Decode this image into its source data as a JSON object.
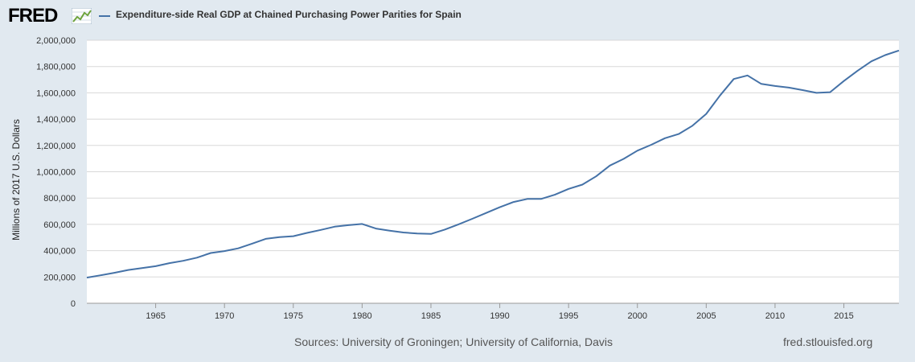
{
  "header": {
    "logo_text": "FRED",
    "legend_label": "Expenditure-side Real GDP at Chained Purchasing Power Parities for Spain"
  },
  "footer": {
    "source": "Sources: University of Groningen; University of California, Davis",
    "site": "fred.stlouisfed.org"
  },
  "colors": {
    "line": "#4572a7",
    "background": "#e1e9f0",
    "plot": "#ffffff",
    "grid": "#d8d8d8"
  },
  "chart_data": {
    "type": "line",
    "title": "Expenditure-side Real GDP at Chained Purchasing Power Parities for Spain",
    "xlabel": "",
    "ylabel": "Millions of 2017 U.S. Dollars",
    "xlim": [
      1960,
      2019
    ],
    "ylim": [
      0,
      2000000
    ],
    "x_ticks": [
      1965,
      1970,
      1975,
      1980,
      1985,
      1990,
      1995,
      2000,
      2005,
      2010,
      2015
    ],
    "y_ticks": [
      0,
      200000,
      400000,
      600000,
      800000,
      1000000,
      1200000,
      1400000,
      1600000,
      1800000,
      2000000
    ],
    "y_tick_labels": [
      "0",
      "200,000",
      "400,000",
      "600,000",
      "800,000",
      "1,000,000",
      "1,200,000",
      "1,400,000",
      "1,600,000",
      "1,800,000",
      "2,000,000"
    ],
    "grid": true,
    "legend": "top-left",
    "series": [
      {
        "name": "Expenditure-side Real GDP at Chained Purchasing Power Parities for Spain",
        "x": [
          1960,
          1961,
          1962,
          1963,
          1964,
          1965,
          1966,
          1967,
          1968,
          1969,
          1970,
          1971,
          1972,
          1973,
          1974,
          1975,
          1976,
          1977,
          1978,
          1979,
          1980,
          1981,
          1982,
          1983,
          1984,
          1985,
          1986,
          1987,
          1988,
          1989,
          1990,
          1991,
          1992,
          1993,
          1994,
          1995,
          1996,
          1997,
          1998,
          1999,
          2000,
          2001,
          2002,
          2003,
          2004,
          2005,
          2006,
          2007,
          2008,
          2009,
          2010,
          2011,
          2012,
          2013,
          2014,
          2015,
          2016,
          2017,
          2018,
          2019
        ],
        "values": [
          195000,
          213000,
          232000,
          253000,
          267000,
          282000,
          305000,
          323000,
          347000,
          382000,
          397000,
          418000,
          453000,
          490000,
          503000,
          510000,
          535000,
          558000,
          582000,
          594000,
          603000,
          568000,
          552000,
          538000,
          530000,
          527000,
          560000,
          600000,
          642000,
          686000,
          730000,
          770000,
          793000,
          793000,
          825000,
          870000,
          902000,
          965000,
          1047000,
          1098000,
          1160000,
          1205000,
          1255000,
          1287000,
          1350000,
          1440000,
          1580000,
          1705000,
          1732000,
          1668000,
          1652000,
          1640000,
          1621000,
          1600000,
          1605000,
          1690000,
          1768000,
          1840000,
          1887000,
          1922000
        ]
      }
    ]
  }
}
